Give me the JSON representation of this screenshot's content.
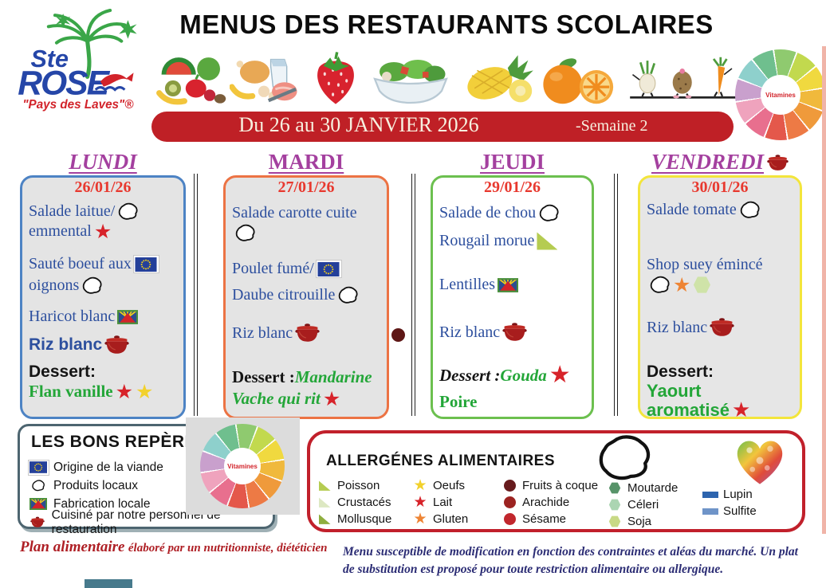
{
  "colors": {
    "banner_bg": "#bf2026",
    "menu_blue": "#2d4f9e",
    "date_red": "#e8392f",
    "day_purple": "#a4409f",
    "dessert_green": "#23a638",
    "footer_red": "#ae1e24",
    "footer_navy": "#2b2c74",
    "allergens_border": "#c1202b"
  },
  "logo": {
    "line1": "Ste",
    "line2": "ROSE",
    "tagline": "\"Pays des Laves\"®"
  },
  "title": "MENUS DES RESTAURANTS SCOLAIRES",
  "banner": {
    "text": "Du 26 au 30 JANVIER 2026",
    "week": "-Semaine 2"
  },
  "vitamins_label": "Vitamines",
  "food_row": [
    "fruits-vegetables",
    "poultry-dairy-meat",
    "strawberry",
    "salad-bowl",
    "pineapple",
    "orange",
    "vegetable-characters"
  ],
  "days": [
    {
      "name": "LUNDI",
      "italic": true,
      "date": "26/01/26",
      "border": "#4d83c4",
      "bg": "#e4e4e4",
      "lines": [
        {
          "cls": "serif",
          "seg": [
            {
              "t": "Salade laitue/"
            },
            {
              "i": "reunion-outline"
            }
          ]
        },
        {
          "cls": "serif",
          "seg": [
            {
              "t": "emmental "
            },
            {
              "i": "star",
              "c": "#d7232a"
            }
          ]
        },
        {
          "cls": "serif",
          "seg": [
            {
              "t": "Sauté boeuf aux "
            },
            {
              "i": "eu-flag"
            }
          ]
        },
        {
          "cls": "serif",
          "seg": [
            {
              "t": "oignons "
            },
            {
              "i": "reunion-outline"
            }
          ]
        },
        {
          "cls": "serif",
          "seg": [
            {
              "t": "Haricot blanc "
            },
            {
              "i": "reunion-flag"
            }
          ]
        },
        {
          "cls": "sans-bold",
          "seg": [
            {
              "t": "Riz blanc "
            },
            {
              "i": "pot"
            }
          ]
        },
        {
          "cls": "black-sans",
          "seg": [
            {
              "t": "Dessert:"
            }
          ]
        },
        {
          "cls": "green-serif",
          "seg": [
            {
              "t": "Flan vanille "
            },
            {
              "i": "star",
              "c": "#d7232a"
            },
            {
              "i": "star",
              "c": "#f2d12c"
            }
          ]
        }
      ]
    },
    {
      "name": "MARDI",
      "italic": false,
      "date": "27/01/26",
      "border": "#ec7344",
      "bg": "#e4e4e4",
      "lines": [
        {
          "cls": "serif",
          "seg": [
            {
              "t": "Salade carotte cuite"
            }
          ]
        },
        {
          "cls": "serif",
          "seg": [
            {
              "i": "reunion-outline"
            }
          ]
        },
        {
          "cls": "serif",
          "seg": [
            {
              "t": "Poulet fumé/ "
            },
            {
              "i": "eu-flag"
            }
          ]
        },
        {
          "cls": "serif",
          "seg": [
            {
              "t": "Daube citrouille "
            },
            {
              "i": "reunion-outline"
            }
          ]
        },
        {
          "cls": "serif",
          "seg": [
            {
              "t": "Riz blanc "
            },
            {
              "i": "pot"
            }
          ]
        },
        {
          "cls": "serif",
          "seg": [
            {
              "t": "Dessert :",
              "cls": "black-serif"
            },
            {
              "t": "Mandarine",
              "cls": "green-it"
            }
          ]
        },
        {
          "cls": "serif",
          "seg": [
            {
              "t": "Vache qui rit ",
              "cls": "green-it"
            },
            {
              "i": "star",
              "c": "#d7232a"
            }
          ]
        }
      ]
    },
    {
      "name": "JEUDI",
      "italic": false,
      "date": "29/01/26",
      "border": "#6cc04f",
      "bg": "#ffffff",
      "lines": [
        {
          "cls": "serif",
          "seg": [
            {
              "t": "Salade de chou "
            },
            {
              "i": "reunion-outline"
            }
          ]
        },
        {
          "cls": "serif",
          "seg": [
            {
              "t": "Rougail morue "
            },
            {
              "i": "tri",
              "c": "#b5cc51",
              "s": 26
            }
          ]
        },
        {
          "cls": "serif",
          "seg": [
            {
              "t": "Lentilles "
            },
            {
              "i": "reunion-flag"
            }
          ]
        },
        {
          "cls": "serif",
          "seg": [
            {
              "t": "Riz blanc "
            },
            {
              "i": "pot"
            }
          ]
        },
        {
          "cls": "serif",
          "seg": [
            {
              "t": "Dessert :",
              "cls": "black-serif-it"
            },
            {
              "t": "Gouda ",
              "cls": "green-it"
            },
            {
              "i": "star",
              "c": "#d7232a",
              "s": 30
            }
          ]
        },
        {
          "cls": "green-serif",
          "seg": [
            {
              "t": "Poire"
            }
          ]
        }
      ]
    },
    {
      "name": "VENDREDI",
      "italic": true,
      "date": "30/01/26",
      "border": "#f3e53c",
      "bg": "#e6e6e6",
      "header_icon": "pot",
      "lines": [
        {
          "cls": "serif",
          "seg": [
            {
              "t": "Salade tomate "
            },
            {
              "i": "reunion-outline"
            }
          ]
        },
        {
          "cls": "serif",
          "seg": [
            {
              "t": "Shop suey émincé"
            }
          ]
        },
        {
          "cls": "serif",
          "seg": [
            {
              "i": "reunion-outline"
            },
            {
              "i": "star",
              "c": "#ee8434"
            },
            {
              "i": "hex",
              "c": "#cfe3a8",
              "s": 22
            }
          ]
        },
        {
          "cls": "serif",
          "seg": [
            {
              "t": "Riz blanc "
            },
            {
              "i": "pot"
            }
          ]
        },
        {
          "cls": "black-sans",
          "seg": [
            {
              "t": "Dessert:"
            }
          ]
        },
        {
          "cls": "green-sans",
          "seg": [
            {
              "t": "Yaourt"
            }
          ]
        },
        {
          "cls": "green-sans",
          "seg": [
            {
              "t": "aromatisé "
            },
            {
              "i": "star",
              "c": "#d7232a",
              "s": 26
            }
          ]
        }
      ]
    }
  ],
  "reperes": {
    "title": "LES BONS REPÈRES",
    "rows": [
      {
        "icon": "eu-flag",
        "label": "Origine de la viande"
      },
      {
        "icon": "reunion-outline",
        "label": "Produits locaux"
      },
      {
        "icon": "reunion-flag",
        "label": "Fabrication locale"
      },
      {
        "icon": "pot",
        "label": "Cuisiné par notre personnel de restauration"
      }
    ]
  },
  "allergens": {
    "title": "ALLERGÉNES ALIMENTAIRES",
    "columns": [
      {
        "items": [
          {
            "icon": "tri",
            "color": "#b5cc51",
            "label": "Poisson"
          },
          {
            "icon": "tri",
            "color": "#dde8c2",
            "label": "Crustacés"
          },
          {
            "icon": "tri",
            "color": "#8fae3f",
            "label": "Mollusque"
          }
        ]
      },
      {
        "items": [
          {
            "icon": "star",
            "color": "#f2d12c",
            "label": "Oeufs"
          },
          {
            "icon": "star",
            "color": "#d7232a",
            "label": "Lait"
          },
          {
            "icon": "star",
            "color": "#ee8434",
            "label": "Gluten"
          }
        ]
      },
      {
        "items": [
          {
            "icon": "dot",
            "color": "#671b1d",
            "label": "Fruits à coque"
          },
          {
            "icon": "dot",
            "color": "#9c2321",
            "label": "Arachide"
          },
          {
            "icon": "dot",
            "color": "#c1272d",
            "label": "Sésame"
          }
        ]
      },
      {
        "items": [
          {
            "icon": "hex",
            "color": "#579369",
            "label": "Moutarde"
          },
          {
            "icon": "hex",
            "color": "#abd5b2",
            "label": "Céleri"
          },
          {
            "icon": "hex",
            "color": "#c8d985",
            "label": "Soja"
          }
        ]
      },
      {
        "items": [
          {
            "icon": "bar",
            "color": "#2d64ae",
            "label": "Lupin"
          },
          {
            "icon": "bar",
            "color": "#6f94c8",
            "label": "Sulfite"
          }
        ]
      }
    ]
  },
  "footer": {
    "left_main": "Plan alimentaire",
    "left_sub": " élaboré par un nutritionniste, diététicien",
    "right_line1": "Menu susceptible de modification en fonction des contraintes et aléas du marché. Un plat",
    "right_line2": "de substitution est proposé pour toute restriction alimentaire ou allergique."
  }
}
